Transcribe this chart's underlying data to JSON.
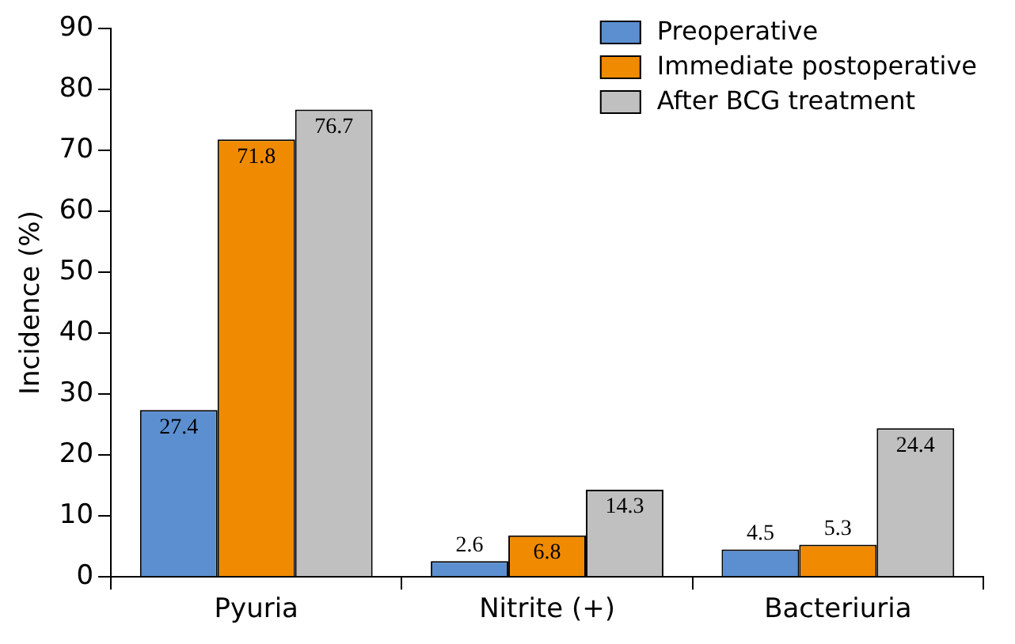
{
  "chart_data": {
    "type": "bar",
    "ylabel": "Incidence (%)",
    "categories": [
      "Pyuria",
      "Nitrite (+)",
      "Bacteriuria"
    ],
    "series": [
      {
        "name": "Preoperative",
        "color": "#5b8fd0",
        "values": [
          27.4,
          2.6,
          4.5
        ]
      },
      {
        "name": "Immediate postoperative",
        "color": "#f08a00",
        "values": [
          71.8,
          6.8,
          5.3
        ]
      },
      {
        "name": "After BCG treatment",
        "color": "#c0c0c0",
        "values": [
          76.7,
          14.3,
          24.4
        ]
      }
    ],
    "ylim": [
      0,
      90
    ],
    "yticks": [
      0,
      10,
      20,
      30,
      40,
      50,
      60,
      70,
      80,
      90
    ],
    "grid": false,
    "legend": "top right",
    "data_labels": true
  }
}
